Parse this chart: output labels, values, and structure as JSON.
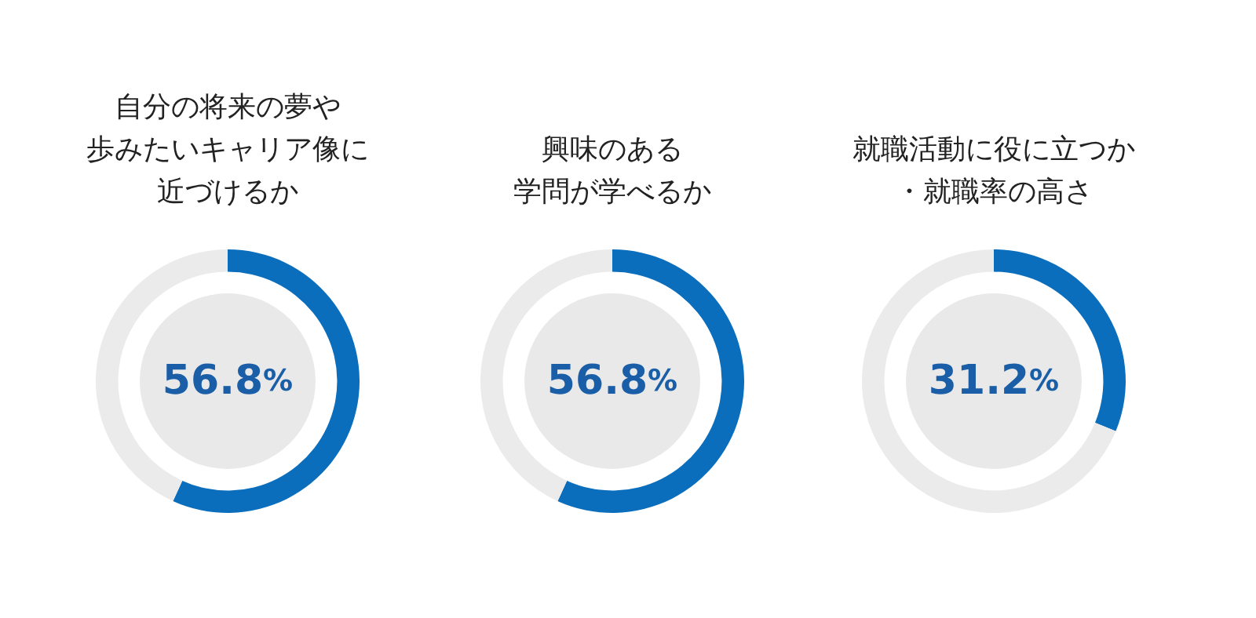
{
  "chart_data": [
    {
      "type": "donut",
      "title": "自分の将来の夢や歩みたいキャリア像に近づけるか",
      "categories": [
        null,
        null
      ],
      "values": [
        56.8,
        43.2
      ],
      "colors": [
        "#0a6ebd",
        "#ebebeb"
      ],
      "value_labels": [
        "56.8%",
        null
      ]
    },
    {
      "type": "donut",
      "title": "興味のある学問が学べるか",
      "categories": [
        null,
        null
      ],
      "values": [
        56.8,
        43.2
      ],
      "colors": [
        "#0a6ebd",
        "#ebebeb"
      ],
      "value_labels": [
        "56.8%",
        null
      ]
    },
    {
      "type": "donut",
      "title": "就職活動に役に立つか・就職率の高さ",
      "categories": [
        null,
        null
      ],
      "values": [
        31.2,
        68.8
      ],
      "colors": [
        "#0a6ebd",
        "#ebebeb"
      ],
      "value_labels": [
        "31.2%",
        null
      ]
    }
  ]
}
